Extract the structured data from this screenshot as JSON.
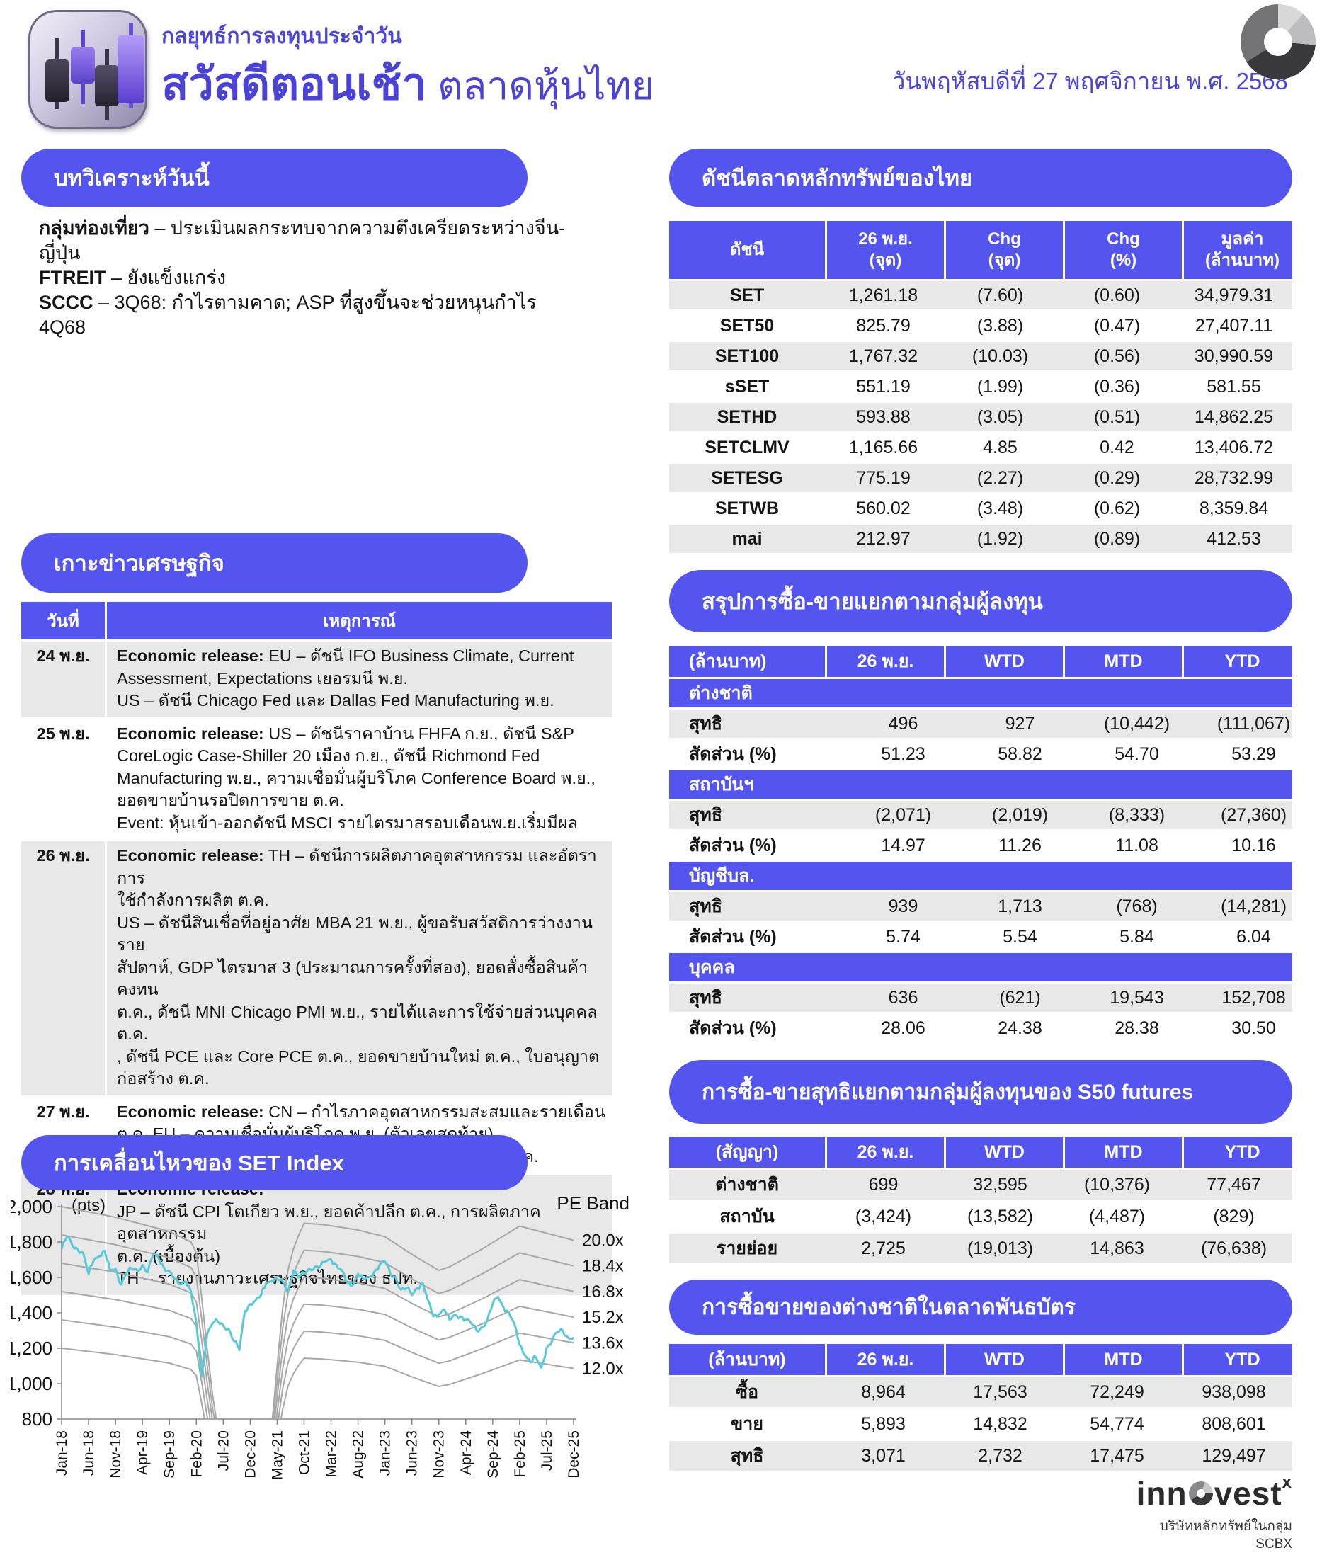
{
  "accent_color": "#5355ee",
  "stripe_color": "#e8e8e8",
  "header": {
    "subtitle": "กลยุทธ์การลงทุนประจำวัน",
    "title_bold": "สวัสดีตอนเช้า",
    "title_light": " ตลาดหุ้นไทย",
    "date": "วันพฤหัสบดีที่ 27 พฤศจิกายน พ.ศ. 2568"
  },
  "analysis": {
    "title": "บทวิเคราะห์วันนี้",
    "items": [
      {
        "b": "กลุ่มท่องเที่ยว",
        "rest": " – ประเมินผลกระทบจากความตึงเครียดระหว่างจีน-\nญี่ปุ่น"
      },
      {
        "b": "FTREIT",
        "rest": " – ยังแข็งแกร่ง"
      },
      {
        "b": "SCCC",
        "rest": " – 3Q68: กำไรตามคาด; ASP ที่สูงขึ้นจะช่วยหนุนกำไร\n4Q68"
      }
    ]
  },
  "econ_news": {
    "title": "เกาะข่าวเศรษฐกิจ",
    "col_date": "วันที่",
    "col_event": "เหตุการณ์",
    "rows": [
      {
        "date": "24 พ.ย.",
        "bold": "Economic release:",
        "text": " EU – ดัชนี IFO Business Climate, Current\nAssessment, Expectations เยอรมนี พ.ย.\nUS – ดัชนี Chicago Fed และ Dallas Fed Manufacturing พ.ย."
      },
      {
        "date": "25 พ.ย.",
        "bold": "Economic release:",
        "text": " US – ดัชนีราคาบ้าน FHFA ก.ย., ดัชนี S&P\nCoreLogic Case-Shiller 20 เมือง ก.ย., ดัชนี Richmond Fed\nManufacturing พ.ย., ความเชื่อมั่นผู้บริโภค Conference Board พ.ย.,\nยอดขายบ้านรอปิดการขาย ต.ค.\nEvent: หุ้นเข้า-ออกดัชนี MSCI รายไตรมาสรอบเดือนพ.ย.เริ่มมีผล"
      },
      {
        "date": "26 พ.ย.",
        "bold": "Economic release:",
        "text": " TH – ดัชนีการผลิตภาคอุตสาหกรรม และอัตราการ\nใช้กำลังการผลิต ต.ค.\nUS – ดัชนีสินเชื่อที่อยู่อาศัย MBA 21 พ.ย., ผู้ขอรับสวัสดิการว่างงานราย\nสัปดาห์, GDP ไตรมาส 3 (ประมาณการครั้งที่สอง), ยอดสั่งซื้อสินค้าคงทน\nต.ค., ดัชนี MNI Chicago PMI พ.ย., รายได้และการใช้จ่ายส่วนบุคคล ต.ค.\n, ดัชนี PCE และ Core PCE ต.ค., ยอดขายบ้านใหม่ ต.ค., ใบอนุญาต\nก่อสร้าง ต.ค."
      },
      {
        "date": "27 พ.ย.",
        "bold": "Economic release:",
        "text": " CN – กำไรภาคอุตสาหกรรมสะสมและรายเดือน\nต.ค. EU – ความเชื่อมั่นผู้บริโภค พ.ย. (ตัวเลขสุดท้าย)\nGE – ดัชนีความเชื่อมั่นผู้บริโภค GfK ธ.ค., ยอดค้าปลีก ต.ค."
      },
      {
        "date": "28 พ.ย.",
        "bold": "Economic release:",
        "text": "\nJP – ดัชนี CPI โตเกียว พ.ย., ยอดค้าปลีก ต.ค., การผลิตภาคอุตสาหกรรม\nต.ค. (เบื้องต้น)\n TH – รายงานภาวะเศรษฐกิจไทยของ ธปท."
      }
    ]
  },
  "thai_index": {
    "title": "ดัชนีตลาดหลักทรัพย์ของไทย",
    "col0": "ดัชนี",
    "columns": [
      [
        "26 พ.ย.",
        "(จุด)"
      ],
      [
        "Chg",
        "(จุด)"
      ],
      [
        "Chg",
        "(%)"
      ],
      [
        "มูลค่า",
        "(ล้านบาท)"
      ]
    ],
    "rows": [
      [
        "SET",
        "1,261.18",
        "(7.60)",
        "(0.60)",
        "34,979.31"
      ],
      [
        "SET50",
        "825.79",
        "(3.88)",
        "(0.47)",
        "27,407.11"
      ],
      [
        "SET100",
        "1,767.32",
        "(10.03)",
        "(0.56)",
        "30,990.59"
      ],
      [
        "sSET",
        "551.19",
        "(1.99)",
        "(0.36)",
        "581.55"
      ],
      [
        "SETHD",
        "593.88",
        "(3.05)",
        "(0.51)",
        "14,862.25"
      ],
      [
        "SETCLMV",
        "1,165.66",
        "4.85",
        "0.42",
        "13,406.72"
      ],
      [
        "SETESG",
        "775.19",
        "(2.27)",
        "(0.29)",
        "28,732.99"
      ],
      [
        "SETWB",
        "560.02",
        "(3.48)",
        "(0.62)",
        "8,359.84"
      ],
      [
        "mai",
        "212.97",
        "(1.92)",
        "(0.89)",
        "412.53"
      ]
    ]
  },
  "investor_summary": {
    "title": "สรุปการซื้อ-ขายแยกตามกลุ่มผู้ลงทุน",
    "unit": "(ล้านบาท)",
    "columns": [
      "26 พ.ย.",
      "WTD",
      "MTD",
      "YTD"
    ],
    "net_label": "สุทธิ",
    "share_label": "สัดส่วน (%)",
    "groups": [
      {
        "name": "ต่างชาติ",
        "net": [
          "496",
          "927",
          "(10,442)",
          "(111,067)"
        ],
        "share": [
          "51.23",
          "58.82",
          "54.70",
          "53.29"
        ]
      },
      {
        "name": "สถาบันฯ",
        "net": [
          "(2,071)",
          "(2,019)",
          "(8,333)",
          "(27,360)"
        ],
        "share": [
          "14.97",
          "11.26",
          "11.08",
          "10.16"
        ]
      },
      {
        "name": "บัญชีบล.",
        "net": [
          "939",
          "1,713",
          "(768)",
          "(14,281)"
        ],
        "share": [
          "5.74",
          "5.54",
          "5.84",
          "6.04"
        ]
      },
      {
        "name": "บุคคล",
        "net": [
          "636",
          "(621)",
          "19,543",
          "152,708"
        ],
        "share": [
          "28.06",
          "24.38",
          "28.38",
          "30.50"
        ]
      }
    ]
  },
  "s50_futures": {
    "title": "การซื้อ-ขายสุทธิแยกตามกลุ่มผู้ลงทุนของ S50 futures",
    "unit": "(สัญญา)",
    "columns": [
      "26 พ.ย.",
      "WTD",
      "MTD",
      "YTD"
    ],
    "rows": [
      {
        "name": "ต่างชาติ",
        "values": [
          "699",
          "32,595",
          "(10,376)",
          "77,467"
        ]
      },
      {
        "name": "สถาบัน",
        "values": [
          "(3,424)",
          "(13,582)",
          "(4,487)",
          "(829)"
        ]
      },
      {
        "name": "รายย่อย",
        "values": [
          "2,725",
          "(19,013)",
          "14,863",
          "(76,638)"
        ]
      }
    ]
  },
  "bond_market": {
    "title": "การซื้อขายของต่างชาติในตลาดพันธบัตร",
    "unit": "(ล้านบาท)",
    "columns": [
      "26 พ.ย.",
      "WTD",
      "MTD",
      "YTD"
    ],
    "rows": [
      {
        "name": "ซื้อ",
        "values": [
          "8,964",
          "17,563",
          "72,249",
          "938,098"
        ]
      },
      {
        "name": "ขาย",
        "values": [
          "5,893",
          "14,832",
          "54,774",
          "808,601"
        ]
      },
      {
        "name": "สุทธิ",
        "values": [
          "3,071",
          "2,732",
          "17,475",
          "129,497"
        ]
      }
    ]
  },
  "chart_data": {
    "type": "line",
    "title": "การเคลื่อนไหวของ SET Index",
    "ylabel": "(pts)",
    "right_label": "PE Band",
    "ylim": [
      800,
      2000
    ],
    "yticks": [
      "800",
      "1,000",
      "1,200",
      "1,400",
      "1,600",
      "1,800",
      "2,000"
    ],
    "x_tick_labels": [
      "Jan-18",
      "Jun-18",
      "Nov-18",
      "Apr-19",
      "Sep-19",
      "Feb-20",
      "Jul-20",
      "Dec-20",
      "May-21",
      "Oct-21",
      "Mar-22",
      "Aug-22",
      "Jan-23",
      "Jun-23",
      "Nov-23",
      "Apr-24",
      "Sep-24",
      "Feb-25",
      "Jul-25",
      "Dec-25"
    ],
    "months_count": 96,
    "set_series": [
      1760,
      1830,
      1780,
      1760,
      1740,
      1620,
      1700,
      1720,
      1750,
      1640,
      1650,
      1560,
      1620,
      1650,
      1640,
      1670,
      1630,
      1730,
      1710,
      1655,
      1635,
      1590,
      1560,
      1580,
      1520,
      1340,
      1040,
      1280,
      1340,
      1350,
      1330,
      1310,
      1240,
      1190,
      1410,
      1450,
      1470,
      1500,
      1570,
      1580,
      1590,
      1580,
      1520,
      1640,
      1600,
      1620,
      1650,
      1660,
      1660,
      1690,
      1700,
      1670,
      1640,
      1570,
      1555,
      1620,
      1590,
      1600,
      1630,
      1670,
      1690,
      1620,
      1600,
      1530,
      1540,
      1500,
      1540,
      1570,
      1470,
      1380,
      1390,
      1420,
      1360,
      1390,
      1380,
      1360,
      1340,
      1300,
      1320,
      1360,
      1450,
      1490,
      1430,
      1400,
      1340,
      1220,
      1160,
      1120,
      1150,
      1090,
      1200,
      1240,
      1290,
      1300,
      1261,
      1261
    ],
    "pe_multiples": [
      20.0,
      18.4,
      16.8,
      15.2,
      13.6,
      12.0
    ],
    "band_labels": [
      "20.0x",
      "18.4x",
      "16.8x",
      "15.2x",
      "13.6x",
      "12.0x"
    ],
    "eps_keyframes": [
      [
        0,
        100
      ],
      [
        10,
        97
      ],
      [
        20,
        93
      ],
      [
        24,
        90
      ],
      [
        25,
        87
      ],
      [
        26,
        74
      ],
      [
        27,
        60
      ],
      [
        28,
        47
      ],
      [
        29,
        37
      ],
      [
        30,
        29
      ],
      [
        31,
        23
      ],
      [
        32,
        18
      ],
      [
        33,
        15
      ],
      [
        34,
        13
      ],
      [
        35,
        12
      ],
      [
        36,
        13
      ],
      [
        37,
        17
      ],
      [
        38,
        25
      ],
      [
        39,
        38
      ],
      [
        40,
        55
      ],
      [
        41,
        71
      ],
      [
        42,
        82
      ],
      [
        43,
        88
      ],
      [
        44,
        92
      ],
      [
        45,
        95.3
      ],
      [
        48,
        95.0
      ],
      [
        50,
        94.6
      ],
      [
        55,
        93.4
      ],
      [
        60,
        91.5
      ],
      [
        65,
        86.5
      ],
      [
        70,
        82
      ],
      [
        72,
        83
      ],
      [
        78,
        88
      ],
      [
        85,
        94.5
      ],
      [
        90,
        92.5
      ],
      [
        95,
        90.5
      ]
    ],
    "line_color": "#58c9d8",
    "band_color": "#a8a8a8",
    "legend_position": "right",
    "grid": false
  },
  "footer": {
    "logo_pre": "inn",
    "logo_post": "vest",
    "logo_sup": "x",
    "tagline": "บริษัทหลักทรัพย์ในกลุ่ม SCBX"
  }
}
